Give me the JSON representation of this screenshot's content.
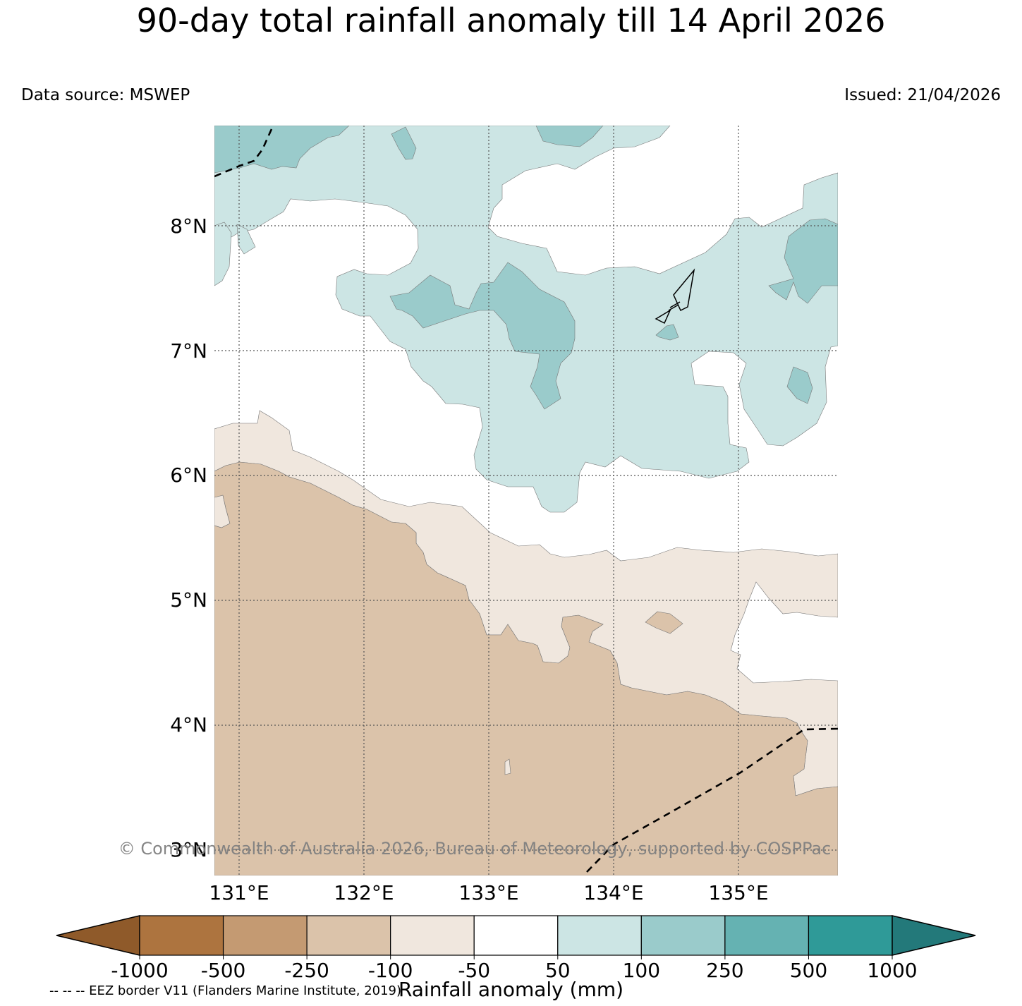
{
  "title": "90-day total rainfall anomaly till 14 April 2026",
  "data_source": "Data source: MSWEP",
  "issued": "Issued: 21/04/2026",
  "lat_labels": [
    "8°N",
    "7°N",
    "6°N",
    "5°N",
    "4°N",
    "3°N"
  ],
  "lon_labels": [
    "131°E",
    "132°E",
    "133°E",
    "134°E",
    "135°E"
  ],
  "copyright": "© Commonwealth of Australia 2026, Bureau of Meteorology, supported by COSPPac",
  "colorbar": {
    "title": "Rainfall anomaly (mm)",
    "ticks": [
      "-1000",
      "-500",
      "-250",
      "-100",
      "-50",
      "50",
      "100",
      "250",
      "500",
      "1000"
    ],
    "colors": [
      "#8f5a2a",
      "#ad743f",
      "#c49a72",
      "#dbc3aa",
      "#f0e7de",
      "#ffffff",
      "#cce5e4",
      "#9acbcb",
      "#65b2b2",
      "#2f9a98",
      "#23797a"
    ]
  },
  "eez_note": "-- -- -- EEZ border V11 (Flanders Marine Institute, 2019)"
}
